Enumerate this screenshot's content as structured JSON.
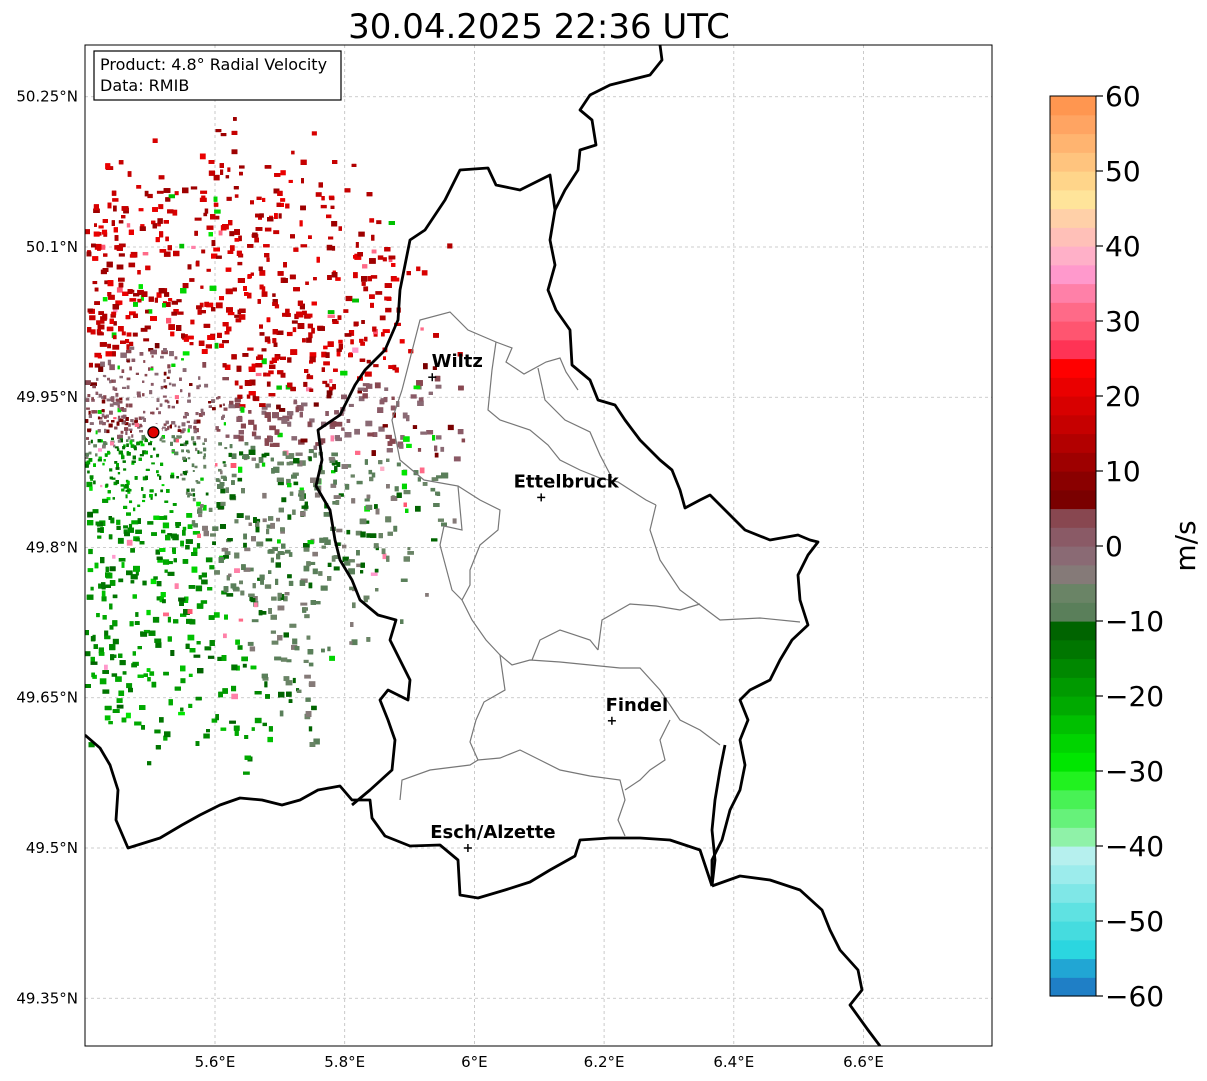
{
  "title": "30.04.2025 22:36 UTC",
  "info": {
    "product": "Product: 4.8° Radial Velocity",
    "data": "Data: RMIB"
  },
  "map": {
    "lon_range": [
      5.4,
      6.8
    ],
    "lat_range": [
      49.3,
      50.3
    ],
    "lon_ticks": [
      {
        "value": 5.6,
        "label": "5.6°E"
      },
      {
        "value": 5.8,
        "label": "5.8°E"
      },
      {
        "value": 6.0,
        "label": "6°E"
      },
      {
        "value": 6.2,
        "label": "6.2°E"
      },
      {
        "value": 6.4,
        "label": "6.4°E"
      },
      {
        "value": 6.6,
        "label": "6.6°E"
      }
    ],
    "lat_ticks": [
      {
        "value": 49.35,
        "label": "49.35°N"
      },
      {
        "value": 49.5,
        "label": "49.5°N"
      },
      {
        "value": 49.65,
        "label": "49.65°N"
      },
      {
        "value": 49.8,
        "label": "49.8°N"
      },
      {
        "value": 49.95,
        "label": "49.95°N"
      },
      {
        "value": 50.1,
        "label": "50.1°N"
      },
      {
        "value": 50.25,
        "label": "50.25°N"
      }
    ],
    "grid": true,
    "radar_site": {
      "lon": 5.505,
      "lat": 49.915
    },
    "cities": [
      {
        "name": "Wiltz",
        "lon": 5.935,
        "lat": 49.97
      },
      {
        "name": "Ettelbruck",
        "lon": 6.103,
        "lat": 49.85
      },
      {
        "name": "Findel",
        "lon": 6.212,
        "lat": 49.627
      },
      {
        "name": "Esch/Alzette",
        "lon": 5.99,
        "lat": 49.5
      }
    ]
  },
  "colorbar": {
    "label": "m/s",
    "min": -60,
    "max": 60,
    "ticks": [
      {
        "value": 60,
        "label": "60"
      },
      {
        "value": 50,
        "label": "50"
      },
      {
        "value": 40,
        "label": "40"
      },
      {
        "value": 30,
        "label": "30"
      },
      {
        "value": 20,
        "label": "20"
      },
      {
        "value": 10,
        "label": "10"
      },
      {
        "value": 0,
        "label": "0"
      },
      {
        "value": -10,
        "label": "−10"
      },
      {
        "value": -20,
        "label": "−20"
      },
      {
        "value": -30,
        "label": "−30"
      },
      {
        "value": -40,
        "label": "−40"
      },
      {
        "value": -50,
        "label": "−50"
      },
      {
        "value": -60,
        "label": "−60"
      }
    ],
    "colors": [
      "#1f7fc6",
      "#21a6d4",
      "#2bd6e0",
      "#45dcdf",
      "#5fe2e2",
      "#7fe7e7",
      "#9cecec",
      "#b6f0ee",
      "#8ff2a8",
      "#66f27a",
      "#48f255",
      "#21f21f",
      "#00e600",
      "#00d400",
      "#00c000",
      "#00aa00",
      "#009a00",
      "#008800",
      "#007600",
      "#006400",
      "#5a7f5a",
      "#6a8466",
      "#857a78",
      "#8a6a74",
      "#8a5a66",
      "#884750",
      "#7a0000",
      "#8a0000",
      "#9e0000",
      "#b20000",
      "#c60000",
      "#d80000",
      "#ea0000",
      "#ff0000",
      "#ff3355",
      "#ff5570",
      "#ff6a88",
      "#ff80a8",
      "#ff99cc",
      "#ffb0c8",
      "#ffc0b8",
      "#ffd0a8",
      "#ffe49a",
      "#ffd58a",
      "#ffc47e",
      "#ffb470",
      "#ffa462",
      "#ff9650"
    ]
  }
}
